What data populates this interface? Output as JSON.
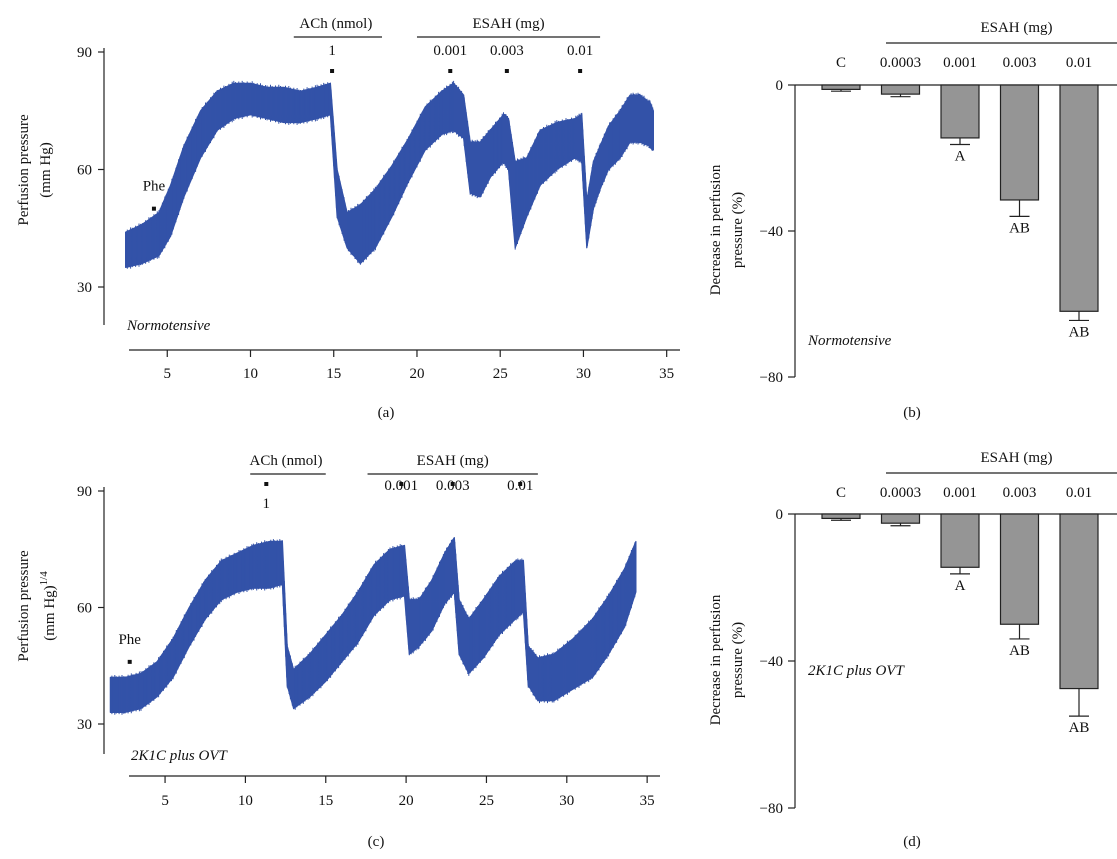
{
  "chart_data": [
    {
      "panel_label": "(a)",
      "type": "line",
      "condition_note": "Normotensive",
      "ylabel_line1": "Perfusion pressure",
      "ylabel_line2": "(mm Hg)",
      "ylabel_suffix": "",
      "yticks": [
        30,
        60,
        90
      ],
      "ylim": [
        27,
        91
      ],
      "xticks": [
        5,
        10,
        15,
        20,
        25,
        30,
        35
      ],
      "xlim": [
        1.2,
        35.8
      ],
      "ach_label": "ACh (nmol)",
      "ach_range": [
        12.6,
        17.9
      ],
      "ach_doses": [
        {
          "t": 14.9,
          "label": "1"
        }
      ],
      "esah_label": "ESAH (mg)",
      "esah_range": [
        20,
        31
      ],
      "esah_doses": [
        {
          "t": 22,
          "label": "0.001"
        },
        {
          "t": 25.4,
          "label": "0.003"
        },
        {
          "t": 29.8,
          "label": "0.01"
        }
      ],
      "phe_label": "Phe",
      "phe_marker": {
        "t": 4.2,
        "y": 50
      },
      "trace": {
        "t": [
          2.5,
          3.5,
          4.5,
          5.2,
          6.0,
          7.0,
          8.0,
          9.0,
          10,
          11,
          12,
          13,
          14,
          14.8,
          15.2,
          15.8,
          16.6,
          17.5,
          18.5,
          19.5,
          20.5,
          21.5,
          22.2,
          22.8,
          23.2,
          23.8,
          24.4,
          25.2,
          25.5,
          25.9,
          26.6,
          27.4,
          28.4,
          29.5,
          29.9,
          30.2,
          30.6,
          31.0,
          31.5,
          32.2,
          32.8,
          33.4,
          34.0,
          34.2
        ],
        "upper": [
          44,
          46,
          49,
          56,
          66,
          75,
          80,
          82,
          82,
          81,
          81,
          80,
          81,
          82,
          60,
          49,
          51,
          55,
          61,
          68,
          76,
          80,
          82,
          79,
          67,
          67,
          70,
          74,
          73,
          62,
          63,
          70,
          72,
          73,
          74,
          52,
          62,
          66,
          71,
          75,
          79,
          79,
          77,
          75
        ],
        "lower": [
          35,
          36,
          38,
          43,
          53,
          63,
          70,
          73,
          74,
          73,
          72,
          72,
          73,
          74,
          48,
          40,
          36,
          40,
          48,
          57,
          65,
          69,
          70,
          68,
          54,
          53,
          58,
          62,
          60,
          40,
          48,
          56,
          60,
          63,
          62,
          40,
          50,
          55,
          60,
          63,
          67,
          67,
          66,
          65
        ]
      }
    },
    {
      "panel_label": "(b)",
      "type": "bar",
      "condition_note": "Normotensive",
      "ylabel_line1": "Decrease in perfusion",
      "ylabel_line2": "pressure (%)",
      "yticks": [
        0,
        -40,
        -80
      ],
      "ylim": [
        -80,
        0
      ],
      "header": "ESAH (mg)",
      "categories": [
        "C",
        "0.0003",
        "0.001",
        "0.003",
        "0.01"
      ],
      "values": [
        -1.2,
        -2.5,
        -14.5,
        -31.5,
        -62
      ],
      "errors": [
        0.5,
        0.7,
        1.8,
        4.5,
        2.5
      ],
      "bar_labels": [
        "",
        "",
        "A",
        "AB",
        "AB"
      ]
    },
    {
      "panel_label": "(c)",
      "type": "line",
      "condition_note": "2K1C plus OVT",
      "ylabel_line1": "Perfusion pressure",
      "ylabel_line2": "(mm Hg)",
      "ylabel_suffix": "1/4",
      "yticks": [
        30,
        60,
        90
      ],
      "ylim": [
        24,
        91
      ],
      "xticks": [
        5,
        10,
        15,
        20,
        25,
        30,
        35
      ],
      "xlim": [
        1.2,
        35.8
      ],
      "ach_label": "ACh (nmol)",
      "ach_range": [
        10.3,
        15
      ],
      "ach_doses": [
        {
          "t": 11.3,
          "label": "1"
        }
      ],
      "esah_label": "ESAH (mg)",
      "esah_range": [
        17.6,
        28.2
      ],
      "esah_doses": [
        {
          "t": 19.7,
          "label": "0.001"
        },
        {
          "t": 22.9,
          "label": "0.003"
        },
        {
          "t": 27.1,
          "label": "0.01"
        }
      ],
      "phe_label": "Phe",
      "phe_marker": {
        "t": 2.8,
        "y": 46
      },
      "trace": {
        "t": [
          1.6,
          2.5,
          3.5,
          4.5,
          5.5,
          6.5,
          7.5,
          8.5,
          9.5,
          10.5,
          11.5,
          12.3,
          12.6,
          13.0,
          14.0,
          15.0,
          16.0,
          17.0,
          18.0,
          19.0,
          19.9,
          20.2,
          20.8,
          21.6,
          22.4,
          23.0,
          23.3,
          23.9,
          24.8,
          25.8,
          26.8,
          27.3,
          27.6,
          28.2,
          29.2,
          30.4,
          31.6,
          32.6,
          33.6,
          34.3
        ],
        "upper": [
          42,
          42,
          43,
          46,
          52,
          60,
          67,
          72,
          74,
          76,
          77,
          77,
          50,
          44,
          48,
          53,
          58,
          64,
          71,
          75,
          76,
          62,
          62,
          67,
          74,
          78,
          62,
          57,
          62,
          68,
          72,
          72,
          50,
          47,
          48,
          52,
          57,
          63,
          70,
          77
        ],
        "lower": [
          33,
          33,
          34,
          37,
          42,
          50,
          57,
          62,
          64,
          65,
          65,
          66,
          40,
          34,
          37,
          41,
          46,
          51,
          58,
          62,
          63,
          48,
          50,
          54,
          61,
          64,
          48,
          43,
          47,
          53,
          57,
          59,
          40,
          36,
          36,
          39,
          42,
          48,
          55,
          64
        ]
      }
    },
    {
      "panel_label": "(d)",
      "type": "bar",
      "condition_note": "2K1C plus OVT",
      "ylabel_line1": "Decrease in perfusion",
      "ylabel_line2": "pressure (%)",
      "yticks": [
        0,
        -40,
        -80
      ],
      "ylim": [
        -80,
        0
      ],
      "header": "ESAH (mg)",
      "categories": [
        "C",
        "0.0003",
        "0.001",
        "0.003",
        "0.01"
      ],
      "values": [
        -1.2,
        -2.5,
        -14.5,
        -30,
        -47.5
      ],
      "errors": [
        0.5,
        0.7,
        1.8,
        4.0,
        7.5
      ],
      "bar_labels": [
        "",
        "",
        "A",
        "AB",
        "AB"
      ]
    }
  ],
  "colors": {
    "trace": "#3352a8",
    "bar": "#959595",
    "axis": "#222222"
  }
}
